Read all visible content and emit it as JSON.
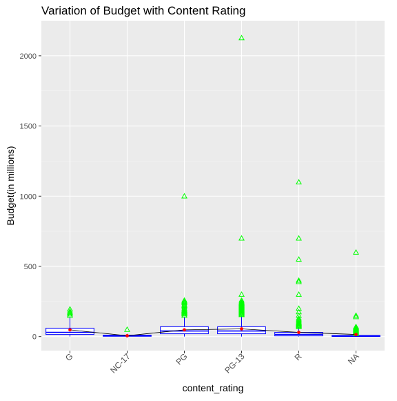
{
  "chart_data": {
    "type": "box",
    "title": "Variation of Budget with Content Rating",
    "xlabel": "content_rating",
    "ylabel": "Budget(in millions)",
    "categories": [
      "G",
      "NC-17",
      "PG",
      "PG-13",
      "R",
      "NA"
    ],
    "ylim": [
      -100,
      2250
    ],
    "yticks": [
      0,
      500,
      1000,
      1500,
      2000
    ],
    "grid": true,
    "boxes": [
      {
        "category": "G",
        "lower_whisker": 0,
        "q1": 15,
        "median": 30,
        "q3": 60,
        "upper_whisker": 140,
        "mean": 48
      },
      {
        "category": "NC-17",
        "lower_whisker": 0,
        "q1": 2,
        "median": 5,
        "q3": 10,
        "upper_whisker": 20,
        "mean": 6
      },
      {
        "category": "PG",
        "lower_whisker": 0,
        "q1": 20,
        "median": 40,
        "q3": 70,
        "upper_whisker": 140,
        "mean": 48
      },
      {
        "category": "PG-13",
        "lower_whisker": 0,
        "q1": 20,
        "median": 40,
        "q3": 70,
        "upper_whisker": 150,
        "mean": 55
      },
      {
        "category": "R",
        "lower_whisker": 0,
        "q1": 5,
        "median": 15,
        "q3": 30,
        "upper_whisker": 65,
        "mean": 30
      },
      {
        "category": "NA",
        "lower_whisker": 0,
        "q1": 1,
        "median": 3,
        "q3": 8,
        "upper_whisker": 18,
        "mean": 15
      }
    ],
    "outliers": [
      {
        "category": "G",
        "values": [
          150,
          160,
          170,
          180,
          195
        ]
      },
      {
        "category": "NC-17",
        "values": [
          50
        ]
      },
      {
        "category": "PG",
        "values": [
          150,
          160,
          165,
          170,
          175,
          180,
          185,
          190,
          200,
          210,
          220,
          230,
          240,
          250,
          258,
          1000
        ]
      },
      {
        "category": "PG-13",
        "values": [
          155,
          160,
          165,
          170,
          175,
          180,
          185,
          190,
          195,
          200,
          205,
          210,
          215,
          220,
          225,
          230,
          235,
          240,
          248,
          258,
          300,
          700,
          2127
        ]
      },
      {
        "category": "R",
        "values": [
          70,
          75,
          80,
          85,
          90,
          95,
          100,
          110,
          120,
          130,
          150,
          175,
          200,
          300,
          390,
          400,
          550,
          700,
          1100
        ]
      },
      {
        "category": "NA",
        "values": [
          20,
          25,
          30,
          35,
          40,
          45,
          50,
          55,
          60,
          65,
          70,
          140,
          150,
          600
        ]
      }
    ],
    "colors": {
      "panel_background": "#ebebeb",
      "grid_major": "#ffffff",
      "grid_minor": "#f5f5f5",
      "box_outline": "#0000ff",
      "outlier": "#00ff00",
      "mean_point": "#ff0000",
      "mean_line": "#000000",
      "tick_label": "#4d4d4d"
    }
  }
}
